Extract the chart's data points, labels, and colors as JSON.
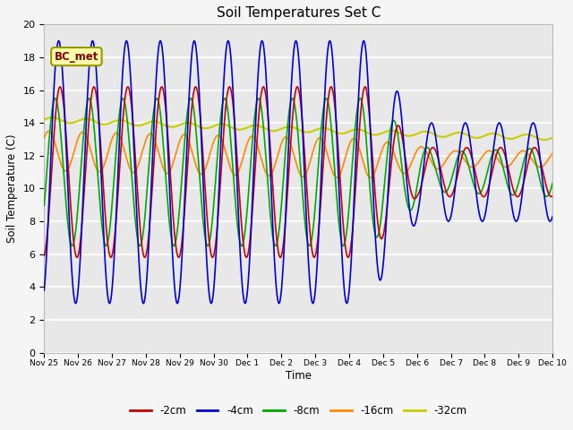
{
  "title": "Soil Temperatures Set C",
  "xlabel": "Time",
  "ylabel": "Soil Temperature (C)",
  "annotation": "BC_met",
  "ylim": [
    0,
    20
  ],
  "series_colors": {
    "-2cm": "#cc0000",
    "-4cm": "#0000dd",
    "-8cm": "#00aa00",
    "-16cm": "#ff8800",
    "-32cm": "#cccc00"
  },
  "tick_labels": [
    "Nov 25",
    "Nov 26",
    "Nov 27",
    "Nov 28",
    "Nov 29",
    "Nov 30",
    "Dec 1",
    "Dec 2",
    "Dec 3",
    "Dec 4",
    "Dec 5",
    "Dec 6",
    "Dec 7",
    "Dec 8",
    "Dec 9",
    "Dec 10"
  ],
  "fig_facecolor": "#f5f5f5",
  "ax_facecolor": "#e8e8e8"
}
